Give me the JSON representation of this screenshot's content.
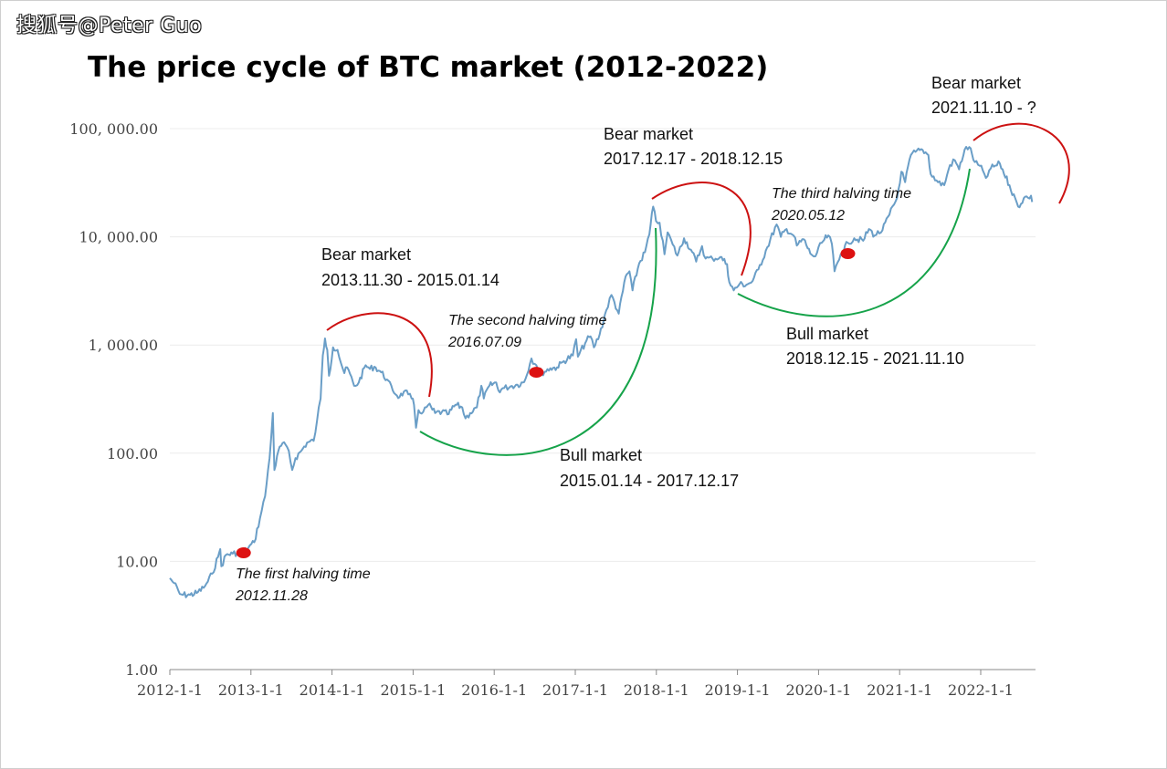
{
  "watermark": "搜狐号@Peter Guo",
  "chart_data": {
    "type": "line",
    "title": "The price cycle of BTC market (2012-2022)",
    "xlabel": "",
    "ylabel": "",
    "y_scale": "log",
    "ylim": [
      1,
      100000
    ],
    "xlim": [
      "2012-01-01",
      "2022-08-20"
    ],
    "y_ticks": [
      "1.00",
      "10.00",
      "100.00",
      "1, 000.00",
      "10, 000.00",
      "100, 000.00"
    ],
    "x_ticks": [
      "2012-1-1",
      "2013-1-1",
      "2014-1-1",
      "2015-1-1",
      "2016-1-1",
      "2017-1-1",
      "2018-1-1",
      "2019-1-1",
      "2020-1-1",
      "2021-1-1",
      "2022-1-1"
    ],
    "grid": true,
    "colors": {
      "line": "#6a9ec7",
      "bear_arc": "#cc1111",
      "bull_arc": "#16a34a",
      "halving_marker": "#dd1111"
    },
    "series": [
      {
        "points": [
          [
            "2012-01-01",
            7
          ],
          [
            "2012-01-20",
            6.3
          ],
          [
            "2012-02-15",
            5
          ],
          [
            "2012-03-01",
            4.9
          ],
          [
            "2012-04-01",
            4.9
          ],
          [
            "2012-05-01",
            5.1
          ],
          [
            "2012-06-01",
            5.7
          ],
          [
            "2012-06-20",
            6.5
          ],
          [
            "2012-07-10",
            7.7
          ],
          [
            "2012-08-05",
            11
          ],
          [
            "2012-08-15",
            13
          ],
          [
            "2012-08-20",
            9
          ],
          [
            "2012-09-10",
            11.5
          ],
          [
            "2012-10-10",
            11.8
          ],
          [
            "2012-11-28",
            12.3
          ],
          [
            "2012-12-20",
            13.4
          ],
          [
            "2013-01-15",
            15
          ],
          [
            "2013-02-10",
            25
          ],
          [
            "2013-03-05",
            40
          ],
          [
            "2013-03-25",
            90
          ],
          [
            "2013-04-09",
            235
          ],
          [
            "2013-04-16",
            70
          ],
          [
            "2013-05-10",
            115
          ],
          [
            "2013-06-05",
            120
          ],
          [
            "2013-06-20",
            105
          ],
          [
            "2013-07-05",
            70
          ],
          [
            "2013-07-20",
            90
          ],
          [
            "2013-08-15",
            105
          ],
          [
            "2013-09-10",
            125
          ],
          [
            "2013-10-10",
            130
          ],
          [
            "2013-10-25",
            200
          ],
          [
            "2013-11-10",
            320
          ],
          [
            "2013-11-20",
            800
          ],
          [
            "2013-11-30",
            1150
          ],
          [
            "2013-12-10",
            900
          ],
          [
            "2013-12-18",
            520
          ],
          [
            "2014-01-05",
            950
          ],
          [
            "2014-01-25",
            900
          ],
          [
            "2014-02-10",
            680
          ],
          [
            "2014-02-25",
            550
          ],
          [
            "2014-03-10",
            620
          ],
          [
            "2014-04-10",
            420
          ],
          [
            "2014-05-01",
            450
          ],
          [
            "2014-06-01",
            650
          ],
          [
            "2014-06-20",
            600
          ],
          [
            "2014-07-10",
            630
          ],
          [
            "2014-08-10",
            560
          ],
          [
            "2014-09-05",
            480
          ],
          [
            "2014-10-01",
            380
          ],
          [
            "2014-11-01",
            330
          ],
          [
            "2014-11-20",
            370
          ],
          [
            "2014-12-10",
            350
          ],
          [
            "2014-12-25",
            320
          ],
          [
            "2015-01-05",
            280
          ],
          [
            "2015-01-14",
            172
          ],
          [
            "2015-01-25",
            250
          ],
          [
            "2015-02-15",
            240
          ],
          [
            "2015-03-10",
            280
          ],
          [
            "2015-04-10",
            235
          ],
          [
            "2015-05-10",
            240
          ],
          [
            "2015-06-10",
            230
          ],
          [
            "2015-07-10",
            280
          ],
          [
            "2015-08-10",
            265
          ],
          [
            "2015-08-25",
            210
          ],
          [
            "2015-09-15",
            235
          ],
          [
            "2015-10-15",
            265
          ],
          [
            "2015-11-04",
            420
          ],
          [
            "2015-11-15",
            320
          ],
          [
            "2015-12-10",
            420
          ],
          [
            "2016-01-10",
            450
          ],
          [
            "2016-01-20",
            380
          ],
          [
            "2016-02-15",
            400
          ],
          [
            "2016-03-15",
            415
          ],
          [
            "2016-04-15",
            430
          ],
          [
            "2016-05-15",
            455
          ],
          [
            "2016-06-17",
            750
          ],
          [
            "2016-07-09",
            650
          ],
          [
            "2016-08-02",
            550
          ],
          [
            "2016-09-10",
            610
          ],
          [
            "2016-10-10",
            620
          ],
          [
            "2016-11-10",
            710
          ],
          [
            "2016-12-20",
            800
          ],
          [
            "2017-01-04",
            1130
          ],
          [
            "2017-01-12",
            780
          ],
          [
            "2017-02-20",
            1100
          ],
          [
            "2017-03-10",
            1200
          ],
          [
            "2017-03-25",
            950
          ],
          [
            "2017-04-20",
            1250
          ],
          [
            "2017-05-20",
            2100
          ],
          [
            "2017-06-12",
            2900
          ],
          [
            "2017-07-15",
            1950
          ],
          [
            "2017-08-15",
            4300
          ],
          [
            "2017-09-01",
            4800
          ],
          [
            "2017-09-15",
            3200
          ],
          [
            "2017-10-15",
            5700
          ],
          [
            "2017-11-10",
            7200
          ],
          [
            "2017-11-30",
            10500
          ],
          [
            "2017-12-17",
            19000
          ],
          [
            "2017-12-30",
            14000
          ],
          [
            "2018-01-15",
            13500
          ],
          [
            "2018-02-06",
            6900
          ],
          [
            "2018-02-20",
            11000
          ],
          [
            "2018-03-15",
            8500
          ],
          [
            "2018-04-05",
            6700
          ],
          [
            "2018-05-05",
            9700
          ],
          [
            "2018-06-05",
            7600
          ],
          [
            "2018-06-29",
            5900
          ],
          [
            "2018-07-25",
            8200
          ],
          [
            "2018-08-10",
            6300
          ],
          [
            "2018-09-10",
            6300
          ],
          [
            "2018-10-15",
            6500
          ],
          [
            "2018-11-15",
            5600
          ],
          [
            "2018-11-25",
            3800
          ],
          [
            "2018-12-15",
            3200
          ],
          [
            "2019-01-10",
            3650
          ],
          [
            "2019-02-10",
            3600
          ],
          [
            "2019-03-10",
            3900
          ],
          [
            "2019-04-05",
            5000
          ],
          [
            "2019-05-15",
            8000
          ],
          [
            "2019-06-26",
            13000
          ],
          [
            "2019-07-15",
            10000
          ],
          [
            "2019-08-10",
            11800
          ],
          [
            "2019-09-10",
            10300
          ],
          [
            "2019-09-25",
            8300
          ],
          [
            "2019-10-26",
            9500
          ],
          [
            "2019-11-25",
            7000
          ],
          [
            "2019-12-18",
            6600
          ],
          [
            "2020-01-15",
            8800
          ],
          [
            "2020-02-14",
            10300
          ],
          [
            "2020-03-01",
            8600
          ],
          [
            "2020-03-13",
            4800
          ],
          [
            "2020-04-10",
            6900
          ],
          [
            "2020-05-12",
            8800
          ],
          [
            "2020-06-10",
            9700
          ],
          [
            "2020-07-20",
            9200
          ],
          [
            "2020-08-15",
            11800
          ],
          [
            "2020-09-10",
            10300
          ],
          [
            "2020-10-15",
            11500
          ],
          [
            "2020-11-15",
            16000
          ],
          [
            "2020-12-20",
            23000
          ],
          [
            "2021-01-08",
            40000
          ],
          [
            "2021-01-25",
            32000
          ],
          [
            "2021-02-20",
            57000
          ],
          [
            "2021-03-13",
            61000
          ],
          [
            "2021-04-14",
            63500
          ],
          [
            "2021-05-10",
            57000
          ],
          [
            "2021-05-20",
            38000
          ],
          [
            "2021-06-22",
            32000
          ],
          [
            "2021-07-20",
            30000
          ],
          [
            "2021-08-15",
            46000
          ],
          [
            "2021-09-06",
            51000
          ],
          [
            "2021-09-25",
            42000
          ],
          [
            "2021-10-20",
            64000
          ],
          [
            "2021-11-10",
            67500
          ],
          [
            "2021-12-05",
            49000
          ],
          [
            "2022-01-10",
            41000
          ],
          [
            "2022-01-24",
            35000
          ],
          [
            "2022-02-15",
            43000
          ],
          [
            "2022-03-28",
            47500
          ],
          [
            "2022-05-10",
            30000
          ],
          [
            "2022-06-18",
            19000
          ],
          [
            "2022-07-20",
            23500
          ],
          [
            "2022-08-01",
            23000
          ],
          [
            "2022-08-15",
            24000
          ],
          [
            "2022-08-20",
            21000
          ]
        ]
      }
    ],
    "halvings": [
      {
        "date": "2012-11-28",
        "value": 12,
        "label": "The first halving time",
        "date_label": "2012.11.28"
      },
      {
        "date": "2016-07-09",
        "value": 560,
        "label": "The second halving time",
        "date_label": "2016.07.09"
      },
      {
        "date": "2020-05-12",
        "value": 7000,
        "label": "The third halving time",
        "date_label": "2020.05.12"
      }
    ],
    "annotations": [
      {
        "kind": "bear",
        "label": "Bear market",
        "range": "2013.11.30 - 2015.01.14"
      },
      {
        "kind": "bull",
        "label": "Bull market",
        "range": "2015.01.14 - 2017.12.17"
      },
      {
        "kind": "bear",
        "label": "Bear market",
        "range": "2017.12.17 - 2018.12.15"
      },
      {
        "kind": "bull",
        "label": "Bull market",
        "range": "2018.12.15 - 2021.11.10"
      },
      {
        "kind": "bear",
        "label": "Bear market",
        "range": "2021.11.10 - ?"
      }
    ]
  }
}
